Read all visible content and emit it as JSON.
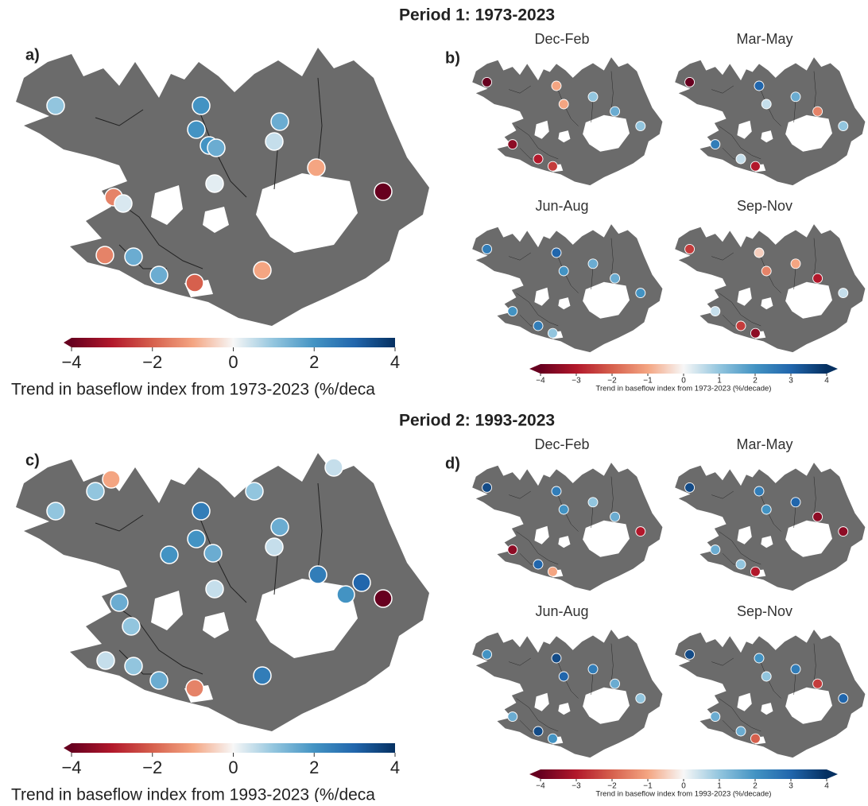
{
  "periods": [
    {
      "title": "Period 1: 1973-2023",
      "annual": {
        "label": "a)",
        "values": [
          1,
          2,
          2,
          1.5,
          2,
          1.5,
          0.5,
          -1,
          -4,
          -1.5,
          0.3,
          -1.5,
          1.5,
          1.5,
          -2,
          -1,
          0.2
        ],
        "colorbar": {
          "lim": [
            -4,
            4
          ],
          "ticks": [
            {
              "value": -4,
              "label": "−4"
            },
            {
              "value": -2,
              "label": "−2"
            },
            0,
            2,
            4
          ],
          "label": "Trend in baseflow index from 1973-2023 (%/deca"
        }
      },
      "seasonal": {
        "label": "b)",
        "panels": [
          {
            "season": "Dec-Feb",
            "values": [
              -4,
              -1,
              -3.5,
              1,
              -1,
              1.5,
              -3,
              -2.5,
              1
            ]
          },
          {
            "season": "Mar-May",
            "values": [
              -4,
              3,
              2.5,
              1.5,
              0.5,
              -1.5,
              0.5,
              -3,
              1
            ]
          },
          {
            "season": "Jun-Aug",
            "values": [
              2.5,
              3,
              2,
              1.5,
              2,
              1.5,
              2.5,
              1,
              2
            ]
          },
          {
            "season": "Sep-Nov",
            "values": [
              -2.5,
              -0.5,
              0.5,
              -1,
              -1.5,
              -3,
              -2.5,
              -3.5,
              0.5
            ]
          }
        ],
        "colorbar": {
          "lim": [
            -4,
            4
          ],
          "ticks": [
            {
              "value": -4,
              "label": "−4"
            },
            {
              "value": -3,
              "label": "−3"
            },
            {
              "value": -2,
              "label": "−2"
            },
            {
              "value": -1,
              "label": "−1"
            },
            0,
            1,
            2,
            3,
            4
          ],
          "label": "Trend in baseflow index from 1973-2023 (%/decade)"
        }
      }
    },
    {
      "title": "Period 2: 1993-2023",
      "annual": {
        "label": "c)",
        "values": [
          1,
          2.5,
          2,
          1.5,
          2,
          1.5,
          0.5,
          2.5,
          -4,
          1.5,
          1,
          0.5,
          1,
          1.5,
          -1.5,
          2.5,
          0.5,
          -1,
          1,
          3,
          2,
          1,
          0.5
        ],
        "colorbar": {
          "lim": [
            -4,
            4
          ],
          "ticks": [
            {
              "value": -4,
              "label": "−4"
            },
            {
              "value": -2,
              "label": "−2"
            },
            0,
            2,
            4
          ],
          "label": "Trend in baseflow index from 1993-2023 (%/deca"
        }
      },
      "seasonal": {
        "label": "d)",
        "panels": [
          {
            "season": "Dec-Feb",
            "values": [
              3.5,
              2.5,
              -3.5,
              1,
              2,
              1.5,
              3,
              -1,
              -3
            ]
          },
          {
            "season": "Mar-May",
            "values": [
              3.5,
              2.5,
              1.5,
              3,
              2,
              -3.5,
              1,
              -3,
              -3.5
            ]
          },
          {
            "season": "Jun-Aug",
            "values": [
              2,
              3.5,
              1.5,
              2.5,
              3,
              1.5,
              3.5,
              2,
              1
            ]
          },
          {
            "season": "Sep-Nov",
            "values": [
              3.5,
              2,
              1.5,
              2.5,
              1,
              -2.5,
              1.5,
              -2,
              3
            ]
          }
        ],
        "colorbar": {
          "lim": [
            -4,
            4
          ],
          "ticks": [
            {
              "value": -4,
              "label": "−4"
            },
            {
              "value": -3,
              "label": "−3"
            },
            {
              "value": -2,
              "label": "−2"
            },
            {
              "value": -1,
              "label": "−1"
            },
            0,
            1,
            2,
            3,
            4
          ],
          "label": "Trend in baseflow index from 1993-2023 (%/decade)"
        }
      }
    }
  ]
}
